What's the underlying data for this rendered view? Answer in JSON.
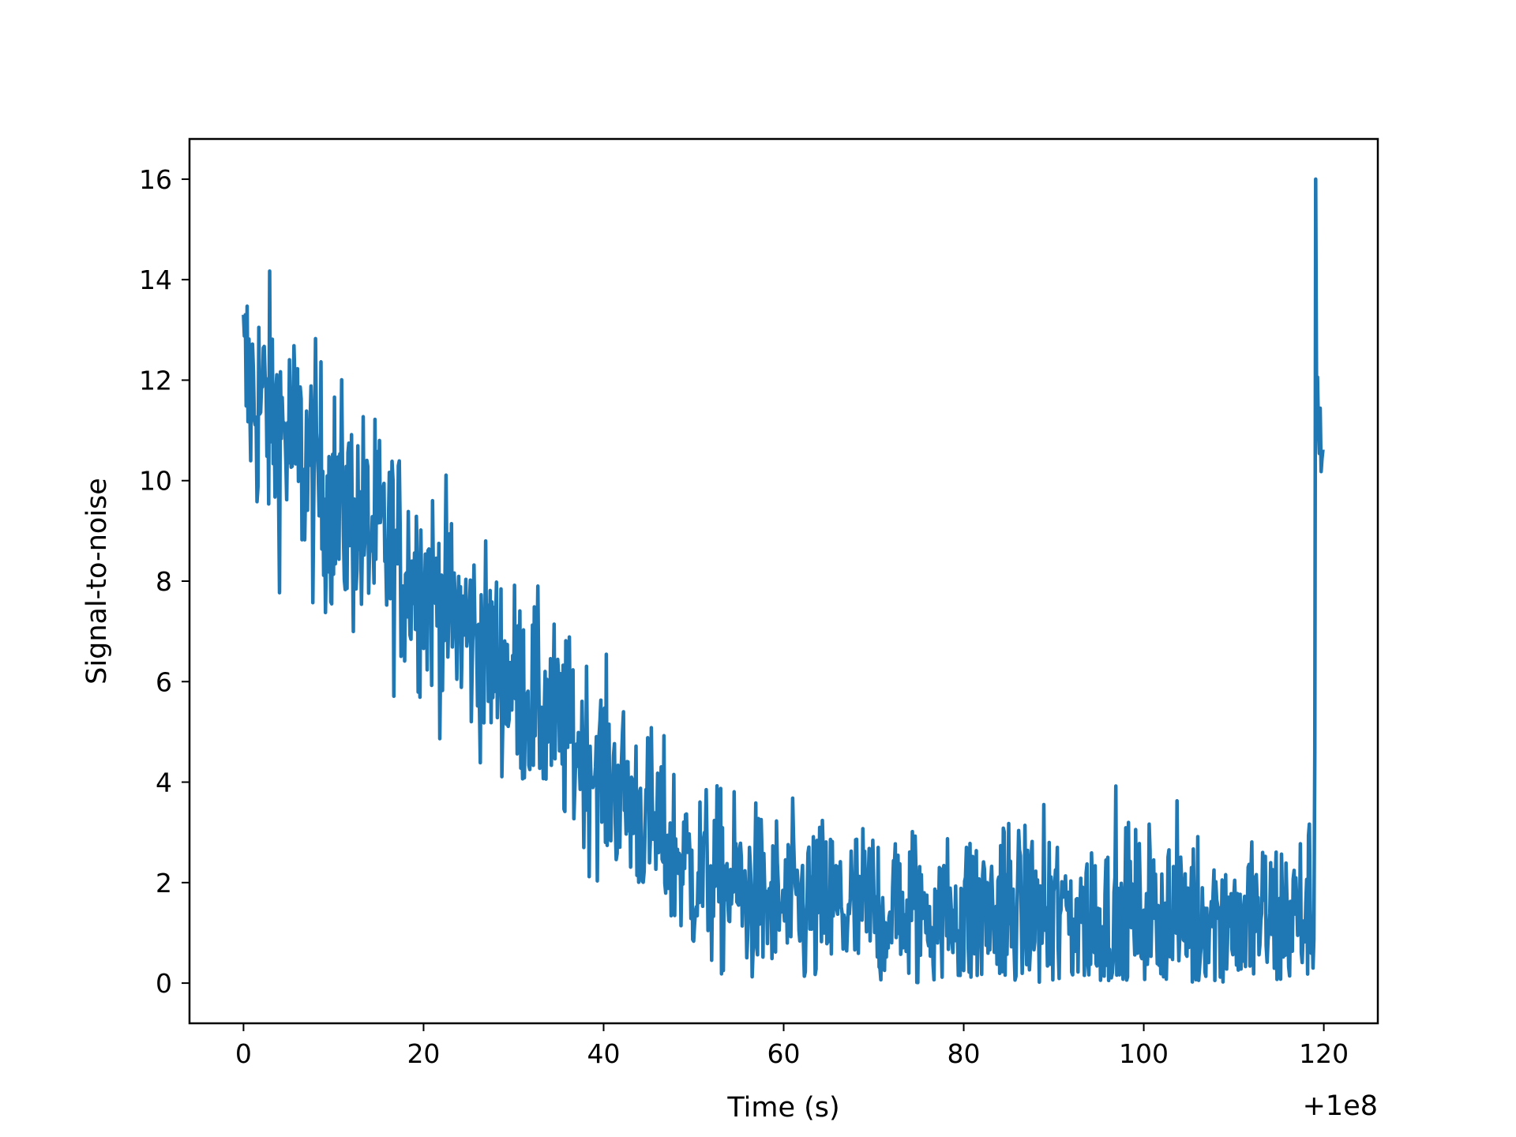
{
  "chart_data": {
    "type": "line",
    "title": "",
    "xlabel": "Time (s)",
    "ylabel": "Signal-to-noise",
    "x_offset_label": "+1e8",
    "xlim": [
      -6,
      126
    ],
    "ylim": [
      -0.8,
      16.8
    ],
    "x_ticks": [
      0,
      20,
      40,
      60,
      80,
      100,
      120
    ],
    "y_ticks": [
      0,
      2,
      4,
      6,
      8,
      10,
      12,
      14,
      16
    ],
    "x_tick_labels": [
      "0",
      "20",
      "40",
      "60",
      "80",
      "100",
      "120"
    ],
    "y_tick_labels": [
      "0",
      "2",
      "4",
      "6",
      "8",
      "10",
      "12",
      "14",
      "16"
    ],
    "grid": false,
    "line_color": "#1f77b4",
    "series": [
      {
        "name": "",
        "sampling": "1200 samples from x=0 to x=119.9, step 0.1",
        "trend": [
          {
            "x": 0,
            "y": 12.0
          },
          {
            "x": 10,
            "y": 9.6
          },
          {
            "x": 20,
            "y": 8.0
          },
          {
            "x": 30,
            "y": 6.0
          },
          {
            "x": 40,
            "y": 4.2
          },
          {
            "x": 50,
            "y": 2.2
          },
          {
            "x": 60,
            "y": 1.5
          },
          {
            "x": 80,
            "y": 1.4
          },
          {
            "x": 100,
            "y": 1.3
          },
          {
            "x": 118.9,
            "y": 1.3
          }
        ],
        "noise_amplitude": [
          {
            "x": 0,
            "y": 1.3
          },
          {
            "x": 30,
            "y": 1.0
          },
          {
            "x": 50,
            "y": 0.9
          },
          {
            "x": 118.9,
            "y": 0.9
          }
        ],
        "peaks": [
          {
            "x": 119.1,
            "y": 16.0
          },
          {
            "x": 119.0,
            "y": 4.6
          }
        ],
        "final_segment": {
          "x_start": 119.2,
          "x_end": 119.9,
          "y_min": 9.5,
          "y_max": 13.0
        },
        "floor": 0.0
      }
    ]
  }
}
